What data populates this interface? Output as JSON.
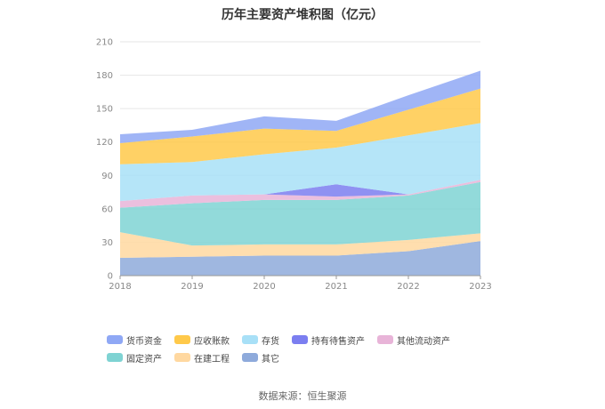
{
  "chart_data": {
    "type": "area",
    "title": "历年主要资产堆积图（亿元）",
    "x": [
      "2018",
      "2019",
      "2020",
      "2021",
      "2022",
      "2023"
    ],
    "ylim": [
      0,
      210
    ],
    "yticks": [
      0,
      30,
      60,
      90,
      120,
      150,
      180,
      210
    ],
    "grid": true,
    "legend_position": "bottom",
    "stack_order": "bottom-to-top",
    "series": [
      {
        "name": "其它",
        "color": "#8eaadb",
        "values": [
          16,
          17,
          18,
          18,
          22,
          31
        ]
      },
      {
        "name": "在建工程",
        "color": "#ffd8a0",
        "values": [
          23,
          10,
          10,
          10,
          10,
          7
        ]
      },
      {
        "name": "固定资产",
        "color": "#7fd3d3",
        "values": [
          22,
          38,
          40,
          40,
          40,
          46
        ]
      },
      {
        "name": "其他流动资产",
        "color": "#e8b4d8",
        "values": [
          6,
          7,
          5,
          3,
          1,
          2
        ]
      },
      {
        "name": "持有待售资产",
        "color": "#7b7ef0",
        "values": [
          0,
          0,
          0,
          11,
          0,
          0
        ]
      },
      {
        "name": "存货",
        "color": "#a8e0f7",
        "values": [
          33,
          30,
          36,
          33,
          53,
          51
        ]
      },
      {
        "name": "应收账款",
        "color": "#ffc94a",
        "values": [
          19,
          23,
          23,
          15,
          23,
          31
        ]
      },
      {
        "name": "货币资金",
        "color": "#8fa8f5",
        "values": [
          8,
          6,
          11,
          9,
          13,
          16
        ]
      }
    ],
    "legend_order": [
      "货币资金",
      "应收账款",
      "存货",
      "持有待售资产",
      "其他流动资产",
      "固定资产",
      "在建工程",
      "其它"
    ]
  },
  "source_note": "数据来源：恒生聚源"
}
